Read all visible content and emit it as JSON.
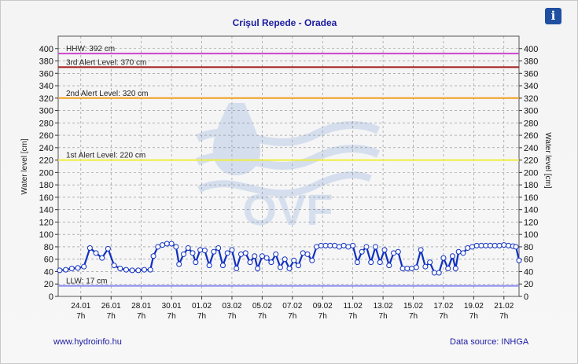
{
  "title": "Crişul Repede - Oradea",
  "info_button": {
    "icon": "info-icon",
    "glyph": "i"
  },
  "footer": {
    "website": "www.hydroinfo.hu",
    "source": "Data source: INHGA"
  },
  "watermark": {
    "text": "OVF"
  },
  "chart_data": {
    "type": "line",
    "ylabel": "Water level [cm]",
    "ylim": [
      0,
      420
    ],
    "yticks": [
      0,
      20,
      40,
      60,
      80,
      100,
      120,
      140,
      160,
      180,
      200,
      220,
      240,
      260,
      280,
      300,
      320,
      340,
      360,
      380,
      400
    ],
    "x_range": [
      0,
      30.5
    ],
    "xticks": [
      {
        "x": 1.5,
        "date": "24.01",
        "hour": "7h"
      },
      {
        "x": 3.5,
        "date": "26.01",
        "hour": "7h"
      },
      {
        "x": 5.5,
        "date": "28.01",
        "hour": "7h"
      },
      {
        "x": 7.5,
        "date": "30.01",
        "hour": "7h"
      },
      {
        "x": 9.5,
        "date": "01.02",
        "hour": "7h"
      },
      {
        "x": 11.5,
        "date": "03.02",
        "hour": "7h"
      },
      {
        "x": 13.5,
        "date": "05.02",
        "hour": "7h"
      },
      {
        "x": 15.5,
        "date": "07.02",
        "hour": "7h"
      },
      {
        "x": 17.5,
        "date": "09.02",
        "hour": "7h"
      },
      {
        "x": 19.5,
        "date": "11.02",
        "hour": "7h"
      },
      {
        "x": 21.5,
        "date": "13.02",
        "hour": "7h"
      },
      {
        "x": 23.5,
        "date": "15.02",
        "hour": "7h"
      },
      {
        "x": 25.5,
        "date": "17.02",
        "hour": "7h"
      },
      {
        "x": 27.5,
        "date": "19.02",
        "hour": "7h"
      },
      {
        "x": 29.5,
        "date": "21.02",
        "hour": "7h"
      }
    ],
    "grid": true,
    "reference_lines": [
      {
        "label": "HHW: 392 cm",
        "value": 392,
        "color": "#cc44cc"
      },
      {
        "label": "3rd Alert Level: 370 cm",
        "value": 370,
        "color": "#a01818"
      },
      {
        "label": "2nd Alert Level: 320 cm",
        "value": 320,
        "color": "#f0a020"
      },
      {
        "label": "1st Alert Level: 220 cm",
        "value": 220,
        "color": "#eeee40"
      },
      {
        "label": "LLW: 17 cm",
        "value": 17,
        "color": "#8888ee"
      }
    ],
    "series": [
      {
        "color": "#1030c0",
        "points": [
          [
            0.1,
            42
          ],
          [
            0.5,
            43
          ],
          [
            0.9,
            45
          ],
          [
            1.3,
            46
          ],
          [
            1.7,
            48
          ],
          [
            2.1,
            78
          ],
          [
            2.5,
            70
          ],
          [
            2.9,
            62
          ],
          [
            3.3,
            77
          ],
          [
            3.7,
            50
          ],
          [
            4.1,
            45
          ],
          [
            4.5,
            43
          ],
          [
            4.9,
            42
          ],
          [
            5.3,
            42
          ],
          [
            5.7,
            43
          ],
          [
            6.1,
            43
          ],
          [
            6.3,
            65
          ],
          [
            6.6,
            80
          ],
          [
            6.9,
            83
          ],
          [
            7.2,
            85
          ],
          [
            7.5,
            85
          ],
          [
            7.8,
            80
          ],
          [
            8.0,
            52
          ],
          [
            8.3,
            68
          ],
          [
            8.6,
            78
          ],
          [
            8.9,
            70
          ],
          [
            9.1,
            55
          ],
          [
            9.4,
            75
          ],
          [
            9.7,
            74
          ],
          [
            10.0,
            50
          ],
          [
            10.3,
            72
          ],
          [
            10.6,
            78
          ],
          [
            10.9,
            50
          ],
          [
            11.2,
            70
          ],
          [
            11.5,
            75
          ],
          [
            11.8,
            45
          ],
          [
            12.1,
            68
          ],
          [
            12.4,
            70
          ],
          [
            12.7,
            55
          ],
          [
            13.0,
            65
          ],
          [
            13.2,
            45
          ],
          [
            13.5,
            65
          ],
          [
            13.8,
            62
          ],
          [
            14.1,
            55
          ],
          [
            14.4,
            68
          ],
          [
            14.7,
            47
          ],
          [
            15.0,
            60
          ],
          [
            15.3,
            45
          ],
          [
            15.6,
            58
          ],
          [
            15.9,
            50
          ],
          [
            16.2,
            70
          ],
          [
            16.5,
            68
          ],
          [
            16.8,
            58
          ],
          [
            17.1,
            80
          ],
          [
            17.4,
            82
          ],
          [
            17.7,
            82
          ],
          [
            18.0,
            82
          ],
          [
            18.3,
            82
          ],
          [
            18.6,
            80
          ],
          [
            18.9,
            82
          ],
          [
            19.2,
            80
          ],
          [
            19.5,
            82
          ],
          [
            19.8,
            55
          ],
          [
            20.1,
            72
          ],
          [
            20.4,
            80
          ],
          [
            20.7,
            55
          ],
          [
            21.0,
            80
          ],
          [
            21.3,
            55
          ],
          [
            21.6,
            75
          ],
          [
            21.9,
            50
          ],
          [
            22.2,
            70
          ],
          [
            22.5,
            72
          ],
          [
            22.8,
            45
          ],
          [
            23.1,
            45
          ],
          [
            23.4,
            45
          ],
          [
            23.7,
            47
          ],
          [
            24.0,
            75
          ],
          [
            24.3,
            48
          ],
          [
            24.6,
            55
          ],
          [
            24.9,
            38
          ],
          [
            25.2,
            38
          ],
          [
            25.5,
            62
          ],
          [
            25.8,
            45
          ],
          [
            26.1,
            65
          ],
          [
            26.3,
            45
          ],
          [
            26.5,
            72
          ],
          [
            26.8,
            70
          ],
          [
            27.1,
            78
          ],
          [
            27.4,
            80
          ],
          [
            27.7,
            82
          ],
          [
            28.0,
            82
          ],
          [
            28.3,
            82
          ],
          [
            28.6,
            82
          ],
          [
            28.9,
            82
          ],
          [
            29.2,
            82
          ],
          [
            29.5,
            83
          ],
          [
            29.8,
            82
          ],
          [
            30.1,
            81
          ],
          [
            30.3,
            80
          ],
          [
            30.5,
            58
          ]
        ]
      }
    ]
  }
}
